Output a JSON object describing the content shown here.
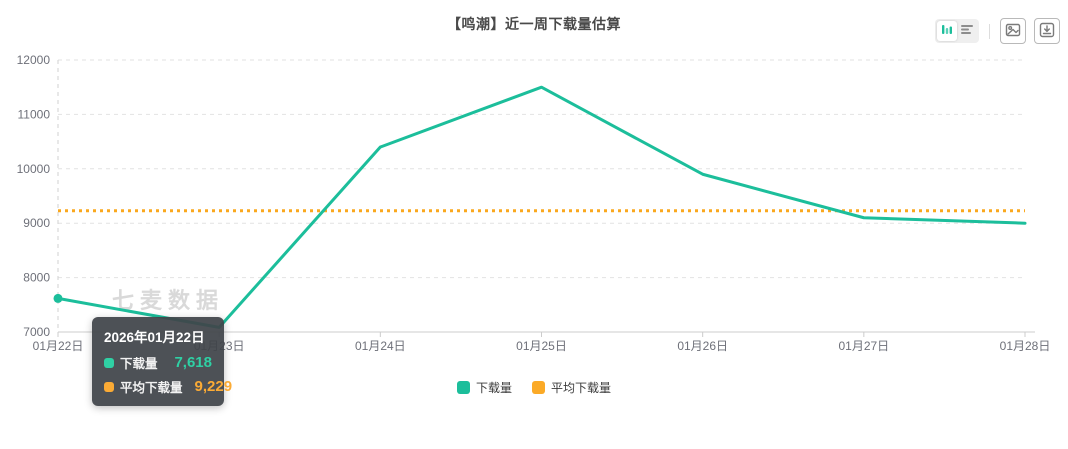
{
  "header": {
    "title": "【鸣潮】近一周下载量估算"
  },
  "toolbar": {
    "chart_type_active": "bar",
    "icons": [
      "bar-chart-toggle-icon",
      "list-view-toggle-icon",
      "save-image-icon",
      "download-data-icon"
    ]
  },
  "watermark": "七麦数据",
  "chart_data": {
    "type": "line",
    "title": "【鸣潮】近一周下载量估算",
    "categories": [
      "01月22日",
      "01月23日",
      "01月24日",
      "01月25日",
      "01月26日",
      "01月27日",
      "01月28日"
    ],
    "series": [
      {
        "name": "下载量",
        "type": "line",
        "color": "#1cbe9b",
        "values": [
          7618,
          7085,
          10400,
          11500,
          9900,
          9100,
          9000
        ]
      },
      {
        "name": "平均下载量",
        "type": "average-line",
        "color": "#faa81e",
        "value": 9229
      }
    ],
    "xlabel": "",
    "ylabel": "",
    "ylim": [
      7000,
      12000
    ],
    "y_ticks": [
      7000,
      8000,
      9000,
      10000,
      11000,
      12000
    ],
    "grid": "horizontal-dashed",
    "legend_position": "bottom",
    "axis_pointer_category": "01月22日"
  },
  "tooltip": {
    "title": "2026年01月22日",
    "rows": [
      {
        "label": "下载量",
        "value": "7,618",
        "color": "#2fd0a4"
      },
      {
        "label": "平均下载量",
        "value": "9,229",
        "color": "#fbab35"
      }
    ]
  },
  "legend": {
    "items": [
      {
        "label": "下载量",
        "color": "#1cbe9b"
      },
      {
        "label": "平均下载量",
        "color": "#fbaa27"
      }
    ]
  }
}
